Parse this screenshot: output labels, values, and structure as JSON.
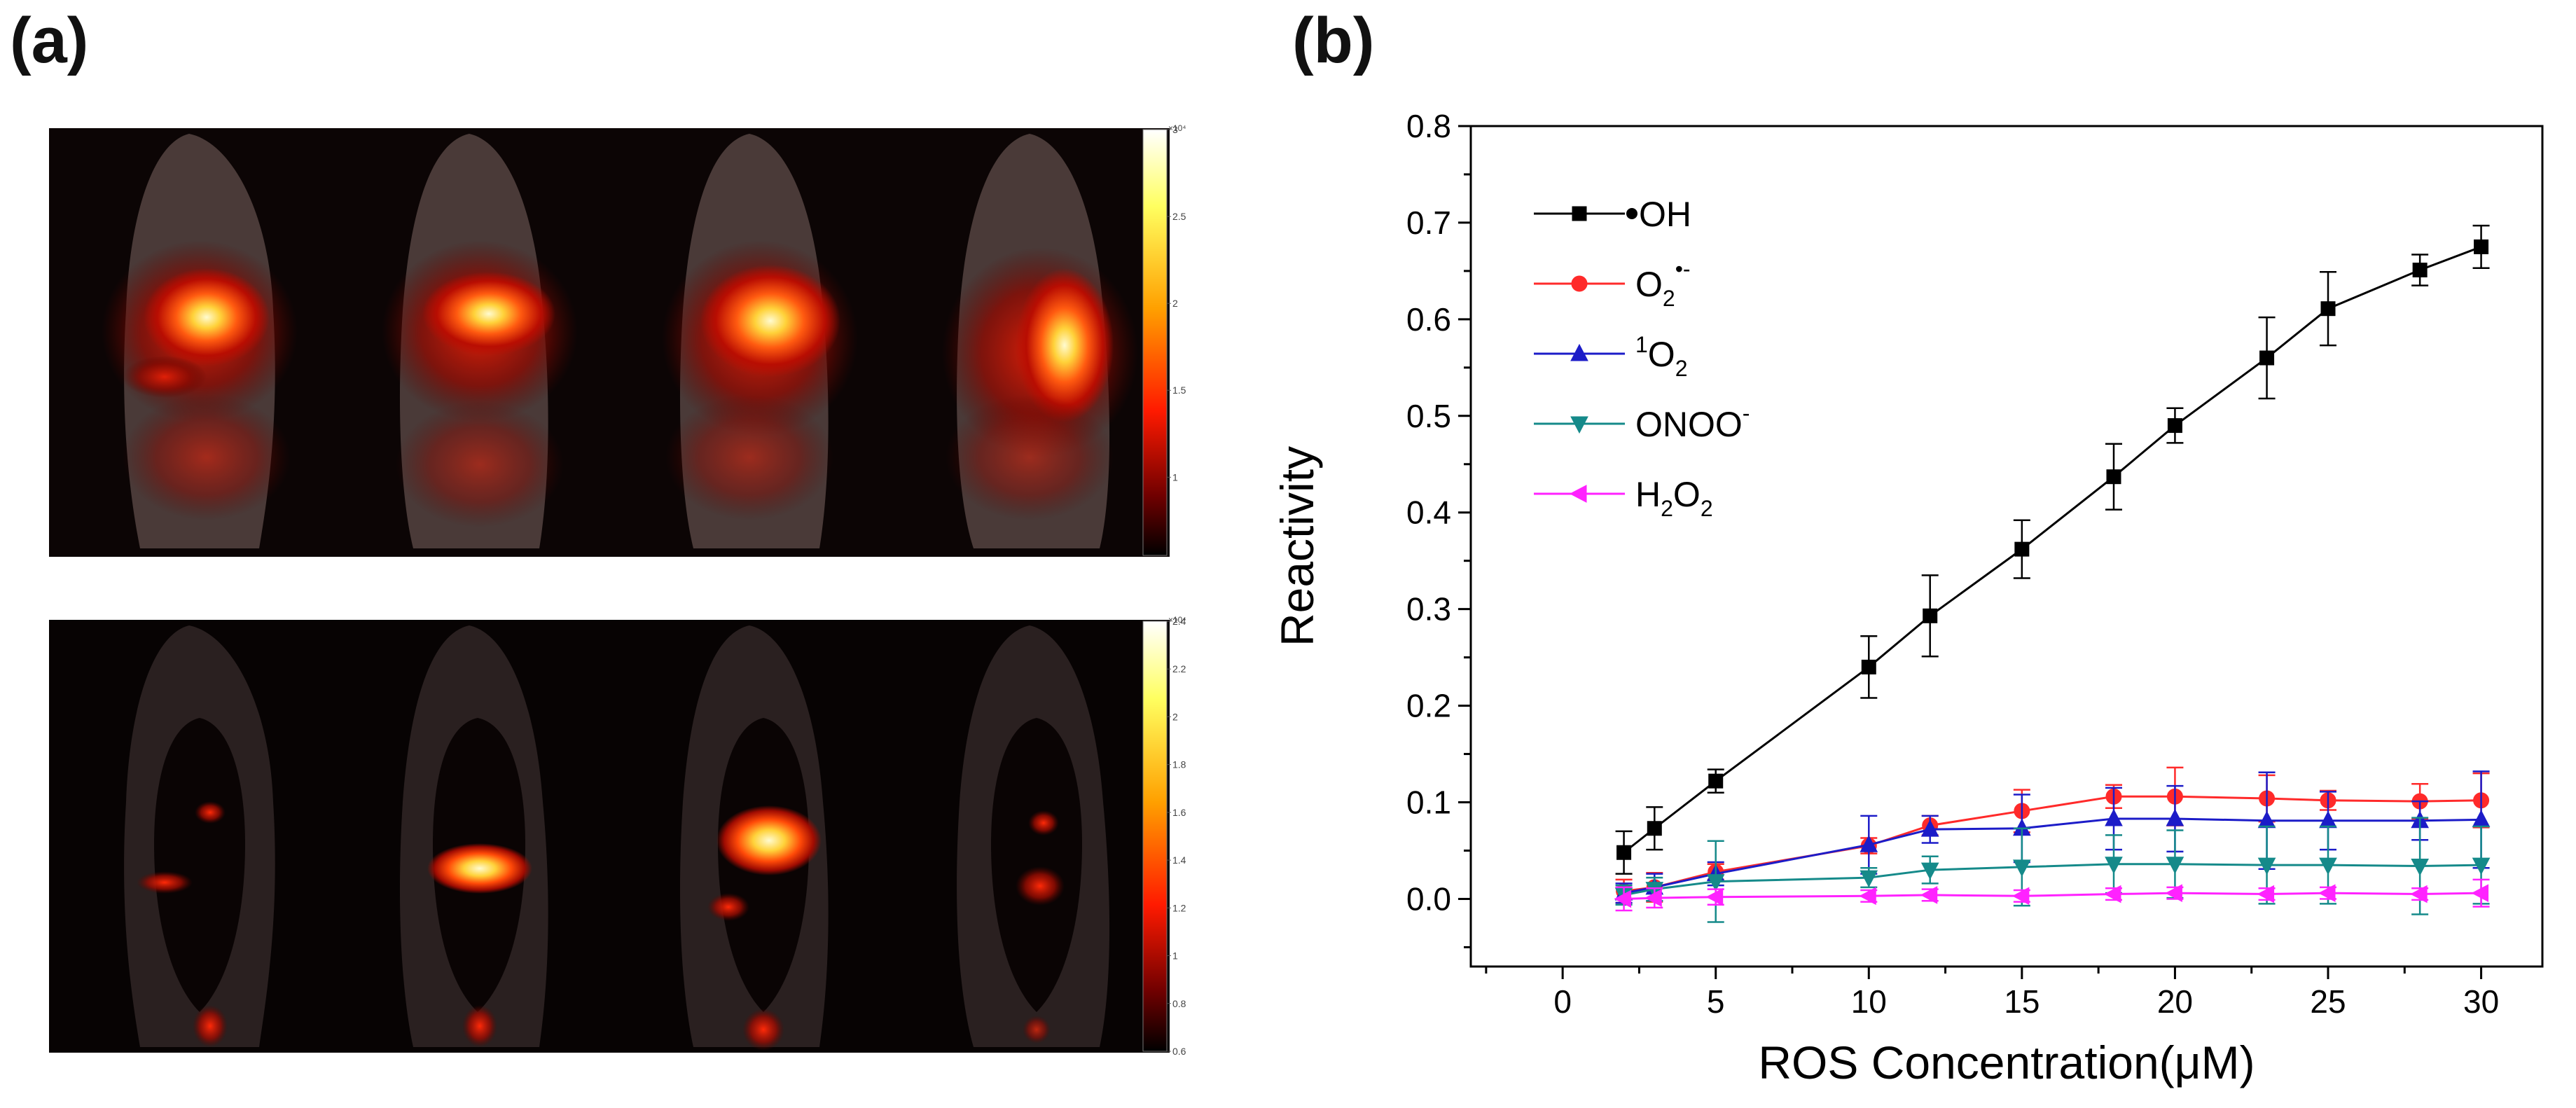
{
  "panels": {
    "a_label": "(a)",
    "b_label": "(b)"
  },
  "imaging": {
    "top": {
      "colorbar_exponent": "×10⁴",
      "ticks": [
        "3",
        "2.5",
        "2",
        "1.5",
        "1"
      ],
      "tick_values": [
        3,
        2.5,
        2,
        1.5,
        1
      ],
      "range": [
        0.55,
        3.0
      ]
    },
    "bottom": {
      "colorbar_exponent": "×10⁴",
      "ticks": [
        "2.4",
        "2.2",
        "2",
        "1.8",
        "1.6",
        "1.4",
        "1.2",
        "1",
        "0.8",
        "0.6"
      ],
      "tick_values": [
        2.4,
        2.2,
        2.0,
        1.8,
        1.6,
        1.4,
        1.2,
        1.0,
        0.8,
        0.6
      ],
      "range": [
        0.6,
        2.4
      ]
    }
  },
  "chart_data": {
    "type": "line",
    "title": "",
    "xlabel": "ROS Concentration(μM)",
    "ylabel": "Reactivity",
    "xlim": [
      -3,
      32
    ],
    "ylim": [
      -0.07,
      0.8
    ],
    "xticks": [
      0,
      5,
      10,
      15,
      20,
      25,
      30
    ],
    "yticks": [
      0.0,
      0.1,
      0.2,
      0.3,
      0.4,
      0.5,
      0.6,
      0.7,
      0.8
    ],
    "ytick_labels": [
      "0.0",
      "0.1",
      "0.2",
      "0.3",
      "0.4",
      "0.5",
      "0.6",
      "0.7",
      "0.8"
    ],
    "legend_position": "top-left",
    "series": [
      {
        "name": "•OH",
        "legend": {
          "base": "OH",
          "sub": "",
          "sup": "",
          "pre": "•"
        },
        "color": "#000000",
        "marker": "square",
        "x": [
          2,
          3,
          5,
          10,
          12,
          15,
          18,
          20,
          23,
          25,
          28,
          30
        ],
        "y": [
          0.048,
          0.073,
          0.122,
          0.24,
          0.293,
          0.362,
          0.437,
          0.49,
          0.56,
          0.611,
          0.651,
          0.675
        ],
        "err": [
          0.022,
          0.022,
          0.012,
          0.032,
          0.042,
          0.03,
          0.034,
          0.018,
          0.042,
          0.038,
          0.016,
          0.022
        ]
      },
      {
        "name": "O2•-",
        "legend": {
          "base": "O",
          "sub": "2",
          "sup": "•-",
          "pre": ""
        },
        "color": "#ff2a2a",
        "marker": "circle",
        "x": [
          2,
          3,
          5,
          10,
          12,
          15,
          18,
          20,
          23,
          25,
          28,
          30
        ],
        "y": [
          0.008,
          0.012,
          0.028,
          0.055,
          0.076,
          0.091,
          0.106,
          0.106,
          0.104,
          0.102,
          0.101,
          0.102
        ],
        "err": [
          0.012,
          0.015,
          0.008,
          0.008,
          0.01,
          0.022,
          0.012,
          0.03,
          0.024,
          0.01,
          0.018,
          0.028
        ]
      },
      {
        "name": "1O2",
        "legend": {
          "base": "O",
          "sub": "2",
          "sup": "",
          "pre": "1"
        },
        "color": "#1c1cc8",
        "marker": "triangle-up",
        "x": [
          2,
          3,
          5,
          10,
          12,
          15,
          18,
          20,
          23,
          25,
          28,
          30
        ],
        "y": [
          0.006,
          0.012,
          0.026,
          0.056,
          0.072,
          0.073,
          0.083,
          0.083,
          0.081,
          0.081,
          0.081,
          0.082
        ],
        "err": [
          0.01,
          0.014,
          0.012,
          0.03,
          0.014,
          0.035,
          0.032,
          0.034,
          0.05,
          0.03,
          0.02,
          0.05
        ]
      },
      {
        "name": "ONOO-",
        "legend": {
          "base": "ONOO",
          "sub": "",
          "sup": "-",
          "pre": ""
        },
        "color": "#158a8a",
        "marker": "triangle-down",
        "x": [
          2,
          3,
          5,
          10,
          12,
          15,
          18,
          20,
          23,
          25,
          28,
          30
        ],
        "y": [
          0.004,
          0.01,
          0.018,
          0.022,
          0.03,
          0.033,
          0.036,
          0.036,
          0.035,
          0.035,
          0.034,
          0.035
        ],
        "err": [
          0.01,
          0.012,
          0.042,
          0.01,
          0.014,
          0.04,
          0.03,
          0.035,
          0.04,
          0.04,
          0.05,
          0.04
        ]
      },
      {
        "name": "H2O2",
        "legend": {
          "base": "H",
          "sub": "2",
          "sup": "",
          "pre": "",
          "tail": "O",
          "tailsub": "2"
        },
        "color": "#ff22ff",
        "marker": "triangle-left",
        "x": [
          2,
          3,
          5,
          10,
          12,
          15,
          18,
          20,
          23,
          25,
          28,
          30
        ],
        "y": [
          0.0,
          0.001,
          0.002,
          0.003,
          0.004,
          0.003,
          0.005,
          0.006,
          0.005,
          0.006,
          0.005,
          0.006
        ],
        "err": [
          0.012,
          0.01,
          0.008,
          0.006,
          0.006,
          0.006,
          0.006,
          0.006,
          0.006,
          0.006,
          0.006,
          0.014
        ]
      }
    ]
  }
}
